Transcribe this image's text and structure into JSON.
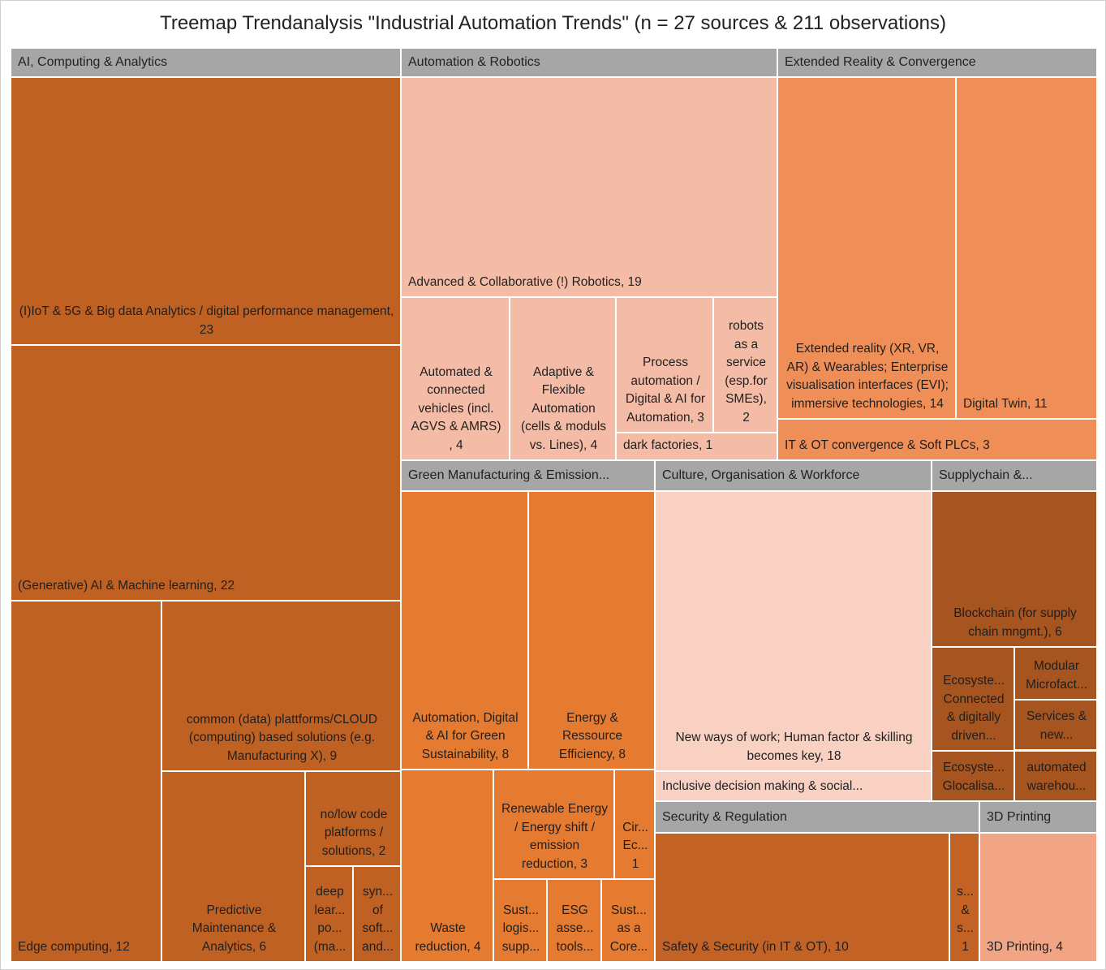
{
  "chart_data": {
    "type": "treemap",
    "title": "Treemap Trendanalysis \"Industrial Automation Trends\" (n = 27 sources & 211 observations)",
    "groups": [
      {
        "name": "AI, Computing & Analytics",
        "color": "#c06124",
        "items": [
          {
            "label": "(I)IoT & 5G & Big data Analytics / digital performance management, 23",
            "value": 23
          },
          {
            "label": "(Generative) AI & Machine learning, 22",
            "value": 22
          },
          {
            "label": "Edge computing, 12",
            "value": 12
          },
          {
            "label": "common (data) plattforms/CLOUD (computing) based solutions (e.g. Manufacturing X), 9",
            "value": 9
          },
          {
            "label": "Predictive Maintenance & Analytics, 6",
            "value": 6
          },
          {
            "label": "no/low code platforms / solutions, 2",
            "value": 2
          },
          {
            "label": "deep lear... po... (ma...",
            "value": 1
          },
          {
            "label": "syn... of soft... and...",
            "value": 1
          }
        ]
      },
      {
        "name": "Automation & Robotics",
        "color": "#f4bca6",
        "items": [
          {
            "label": "Advanced & Collaborative (!) Robotics, 19",
            "value": 19
          },
          {
            "label": "Automated & connected vehicles (incl. AGVS & AMRS) , 4",
            "value": 4
          },
          {
            "label": "Adaptive & Flexible Automation (cells & moduls vs. Lines), 4",
            "value": 4
          },
          {
            "label": "Process automation / Digital & AI for Automation, 3",
            "value": 3
          },
          {
            "label": "robots as a service (esp.for SMEs), 2",
            "value": 2
          },
          {
            "label": "dark factories, 1",
            "value": 1
          }
        ]
      },
      {
        "name": "Extended Reality & Convergence",
        "color": "#ef8f57",
        "items": [
          {
            "label": "Extended reality (XR, VR, AR) & Wearables; Enterprise visualisation interfaces (EVI); immersive technologies, 14",
            "value": 14
          },
          {
            "label": "Digital Twin, 11",
            "value": 11
          },
          {
            "label": "IT & OT convergence & Soft PLCs, 3",
            "value": 3
          }
        ]
      },
      {
        "name": "Green Manufacturing & Emission...",
        "color": "#e57a31",
        "items": [
          {
            "label": "Automation, Digital & AI for Green Sustainability, 8",
            "value": 8
          },
          {
            "label": "Energy & Ressource Efficiency, 8",
            "value": 8
          },
          {
            "label": "Waste reduction, 4",
            "value": 4
          },
          {
            "label": "Renewable Energy / Energy shift / emission reduction, 3",
            "value": 3
          },
          {
            "label": "Cir... Ec... 1",
            "value": 1
          },
          {
            "label": "Sust... logis... supp...",
            "value": 1
          },
          {
            "label": "ESG asse... tools...",
            "value": 1
          },
          {
            "label": "Sust... as a Core...",
            "value": 1
          }
        ]
      },
      {
        "name": "Culture, Organisation & Workforce",
        "color": "#f8d1c3",
        "items": [
          {
            "label": "New ways of work; Human factor & skilling becomes key, 18",
            "value": 18
          },
          {
            "label": "Inclusive decision making & social...",
            "value": 2
          }
        ]
      },
      {
        "name": "Supplychain &...",
        "color": "#a65420",
        "items": [
          {
            "label": "Blockchain (for supply chain mngmt.), 6",
            "value": 6
          },
          {
            "label": "Ecosyste... Connected & digitally driven...",
            "value": 2
          },
          {
            "label": "Modular Microfact...",
            "value": 1
          },
          {
            "label": "Services & new...",
            "value": 1
          },
          {
            "label": "Ecosyste... Glocalisa...",
            "value": 1
          },
          {
            "label": "automated warehou...",
            "value": 1
          }
        ]
      },
      {
        "name": "Security & Regulation",
        "color": "#c26225",
        "items": [
          {
            "label": "Safety & Security (in IT & OT), 10",
            "value": 10
          },
          {
            "label": "s... & s... 1",
            "value": 1
          }
        ]
      },
      {
        "name": "3D Printing",
        "color": "#f2a584",
        "items": [
          {
            "label": "3D Printing, 4",
            "value": 4
          }
        ]
      }
    ]
  }
}
